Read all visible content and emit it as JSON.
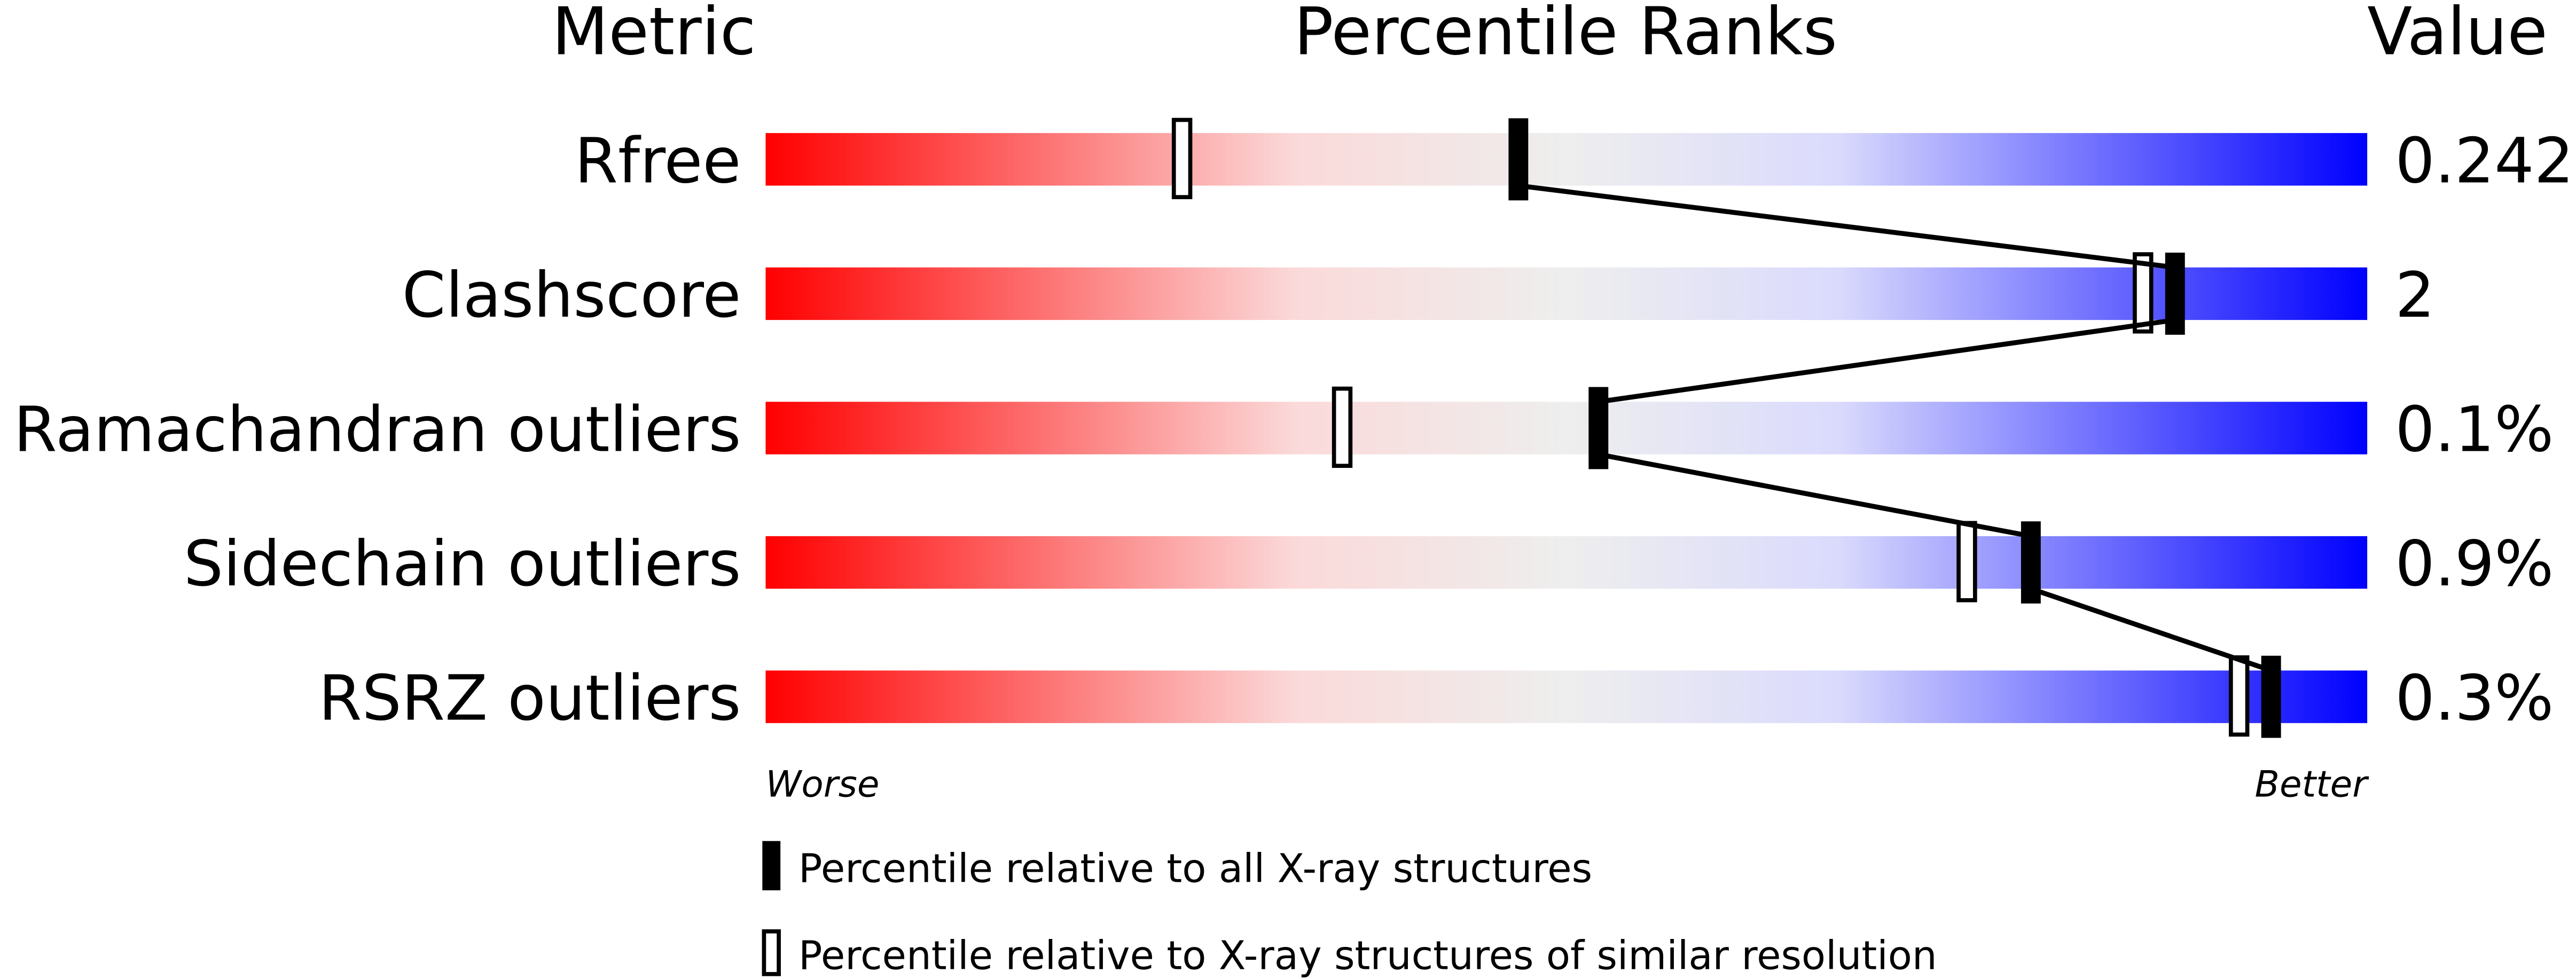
{
  "chart_data": {
    "type": "percentile-slider",
    "headers": {
      "metric": "Metric",
      "ranks": "Percentile Ranks",
      "value": "Value"
    },
    "xlim": [
      0,
      100
    ],
    "axis_labels": {
      "left": "Worse",
      "right": "Better"
    },
    "gradient_colors": [
      "#ff0000",
      "#fbd9d9",
      "#eeeeee",
      "#dadafd",
      "#0000ff"
    ],
    "rows": [
      {
        "metric": "Rfree",
        "value": "0.242",
        "percentile_all": 47,
        "percentile_similar": 26
      },
      {
        "metric": "Clashscore",
        "value": "2",
        "percentile_all": 88,
        "percentile_similar": 86
      },
      {
        "metric": "Ramachandran outliers",
        "value": "0.1%",
        "percentile_all": 52,
        "percentile_similar": 36
      },
      {
        "metric": "Sidechain outliers",
        "value": "0.9%",
        "percentile_all": 79,
        "percentile_similar": 75
      },
      {
        "metric": "RSRZ outliers",
        "value": "0.3%",
        "percentile_all": 94,
        "percentile_similar": 92
      }
    ],
    "legend": [
      {
        "marker": "filled",
        "label": "Percentile relative to all X-ray structures"
      },
      {
        "marker": "open",
        "label": "Percentile relative to X-ray structures of similar resolution"
      }
    ]
  }
}
